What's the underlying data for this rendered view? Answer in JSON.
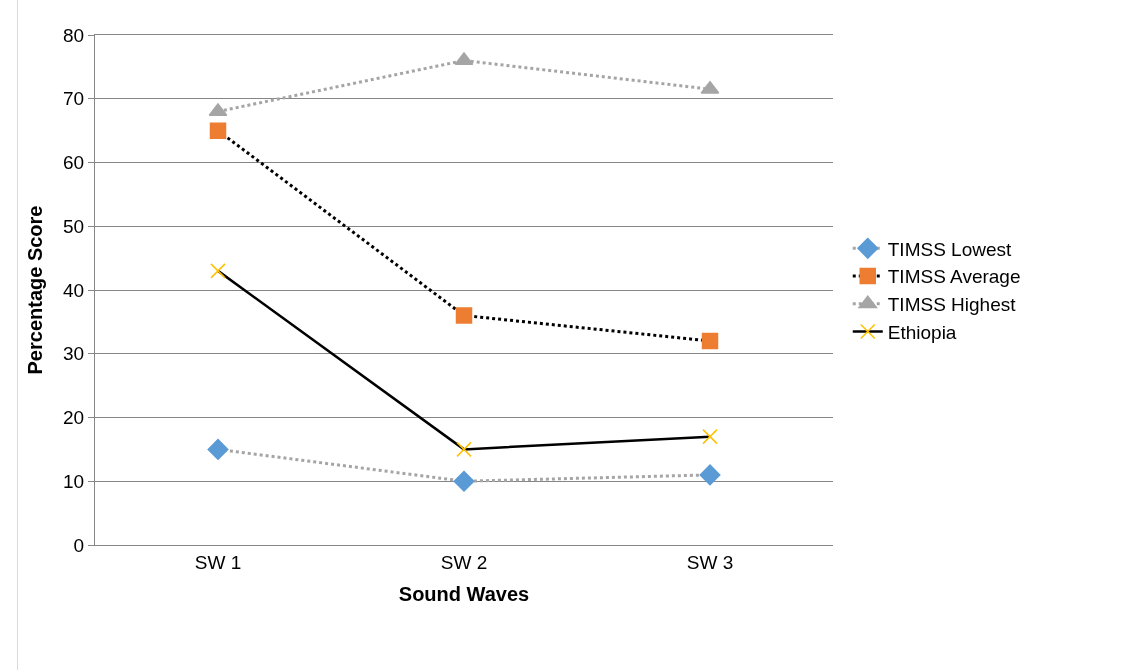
{
  "chart_data": {
    "type": "line",
    "xlabel": "Sound Waves",
    "ylabel": "Percentage Score",
    "categories": [
      "SW 1",
      "SW 2",
      "SW 3"
    ],
    "series": [
      {
        "name": "TIMSS Lowest",
        "color": "#a5a5a5",
        "colors": [
          "#5b9bd5",
          "#5b9bd5",
          "#5b9bd5"
        ],
        "marker": "diamond",
        "line_style": "dotted",
        "values": [
          15,
          10,
          11
        ]
      },
      {
        "name": "TIMSS Average",
        "color": "#000000",
        "colors": [
          "#ed7d31",
          "#ed7d31",
          "#ed7d31"
        ],
        "marker": "square",
        "line_style": "dotted",
        "values": [
          65,
          36,
          32
        ]
      },
      {
        "name": "TIMSS Highest",
        "color": "#a5a5a5",
        "colors": [
          "#a5a5a5",
          "#a5a5a5",
          "#a5a5a5"
        ],
        "marker": "triangle",
        "line_style": "dotted",
        "values": [
          68,
          76,
          71.5
        ]
      },
      {
        "name": "Ethiopia",
        "color": "#000000",
        "colors": [
          "#ffc000",
          "#ffc000",
          "#ffc000"
        ],
        "marker": "cross",
        "line_style": "solid",
        "values": [
          43,
          15,
          17
        ]
      }
    ],
    "ylim": [
      0,
      80
    ],
    "yticks": [
      0,
      10,
      20,
      30,
      40,
      50,
      60,
      70,
      80
    ],
    "grid": "y",
    "legend": "right"
  }
}
